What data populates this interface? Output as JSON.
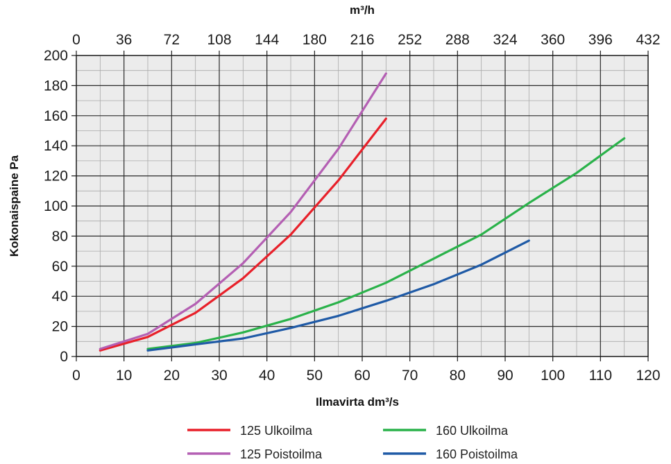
{
  "chart_data": {
    "type": "line",
    "x_axis": {
      "label": "Ilmavirta dm³/s",
      "range": [
        0,
        120
      ],
      "ticks": [
        "0",
        "10",
        "20",
        "30",
        "40",
        "50",
        "60",
        "70",
        "80",
        "90",
        "100",
        "110",
        "120"
      ]
    },
    "x_top_axis": {
      "label": "m³/h",
      "range": [
        0,
        432
      ],
      "ticks": [
        "0",
        "36",
        "72",
        "108",
        "144",
        "180",
        "216",
        "252",
        "288",
        "324",
        "360",
        "396",
        "432"
      ]
    },
    "y_axis": {
      "label": "Kokonaispaine Pa",
      "range": [
        0,
        200
      ],
      "ticks": [
        "0",
        "20",
        "40",
        "60",
        "80",
        "100",
        "120",
        "140",
        "160",
        "180",
        "200"
      ]
    },
    "grid": true,
    "legend_position": "bottom",
    "series": [
      {
        "name": "125 Ulkoilma",
        "color": "#e8202a",
        "x": [
          5,
          15,
          25,
          35,
          45,
          55,
          65
        ],
        "y": [
          4,
          13,
          29,
          52,
          81,
          117,
          158
        ]
      },
      {
        "name": "125 Poistoilma",
        "color": "#b45fb3",
        "x": [
          5,
          15,
          25,
          35,
          45,
          55,
          65
        ],
        "y": [
          5,
          15,
          35,
          62,
          96,
          138,
          188
        ]
      },
      {
        "name": "160 Ulkoilma",
        "color": "#2ab24a",
        "x": [
          15,
          25,
          35,
          45,
          55,
          65,
          75,
          85,
          95,
          105,
          115
        ],
        "y": [
          5,
          9,
          16,
          25,
          36,
          49,
          65,
          81,
          102,
          122,
          145
        ]
      },
      {
        "name": "160 Poistoilma",
        "color": "#1f5aa6",
        "x": [
          15,
          25,
          35,
          45,
          55,
          65,
          75,
          85,
          95
        ],
        "y": [
          4,
          8,
          12,
          19,
          27,
          37,
          48,
          61,
          77
        ]
      }
    ]
  }
}
